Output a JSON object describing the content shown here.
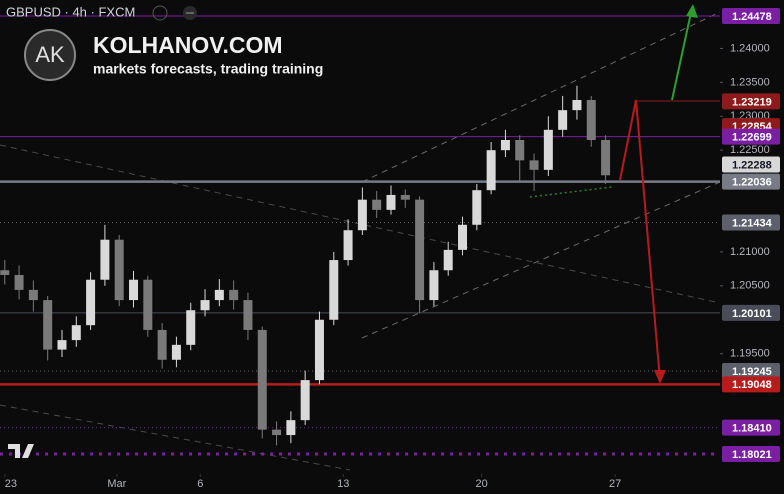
{
  "chart_data": {
    "type": "candlestick",
    "title": "GBPUSD · 4h · FXCM",
    "watermark": {
      "logo": "AK",
      "name": "KOLHANOV.COM",
      "tagline": "markets forecasts, trading training"
    },
    "up_color": "#d9d9d9",
    "down_color": "#7a7a7a",
    "xlim": [
      0,
      151
    ],
    "xticks": [
      {
        "value": 1,
        "label": "23"
      },
      {
        "value": 24.5,
        "label": "Mar"
      },
      {
        "value": 42,
        "label": "6"
      },
      {
        "value": 72,
        "label": "13"
      },
      {
        "value": 101,
        "label": "20"
      },
      {
        "value": 129,
        "label": "27"
      }
    ],
    "ylim": [
      1.17431,
      1.24714
    ],
    "yticks": [
      {
        "value": 1.24,
        "label": "1.24000"
      },
      {
        "value": 1.235,
        "label": "1.23500"
      },
      {
        "value": 1.23,
        "label": "1.23000"
      },
      {
        "value": 1.225,
        "label": "1.22500"
      },
      {
        "value": 1.21,
        "label": "1.21000"
      },
      {
        "value": 1.205,
        "label": "1.20500"
      },
      {
        "value": 1.195,
        "label": "1.19500"
      }
    ],
    "x": [
      1,
      4,
      7,
      10,
      13,
      16,
      19,
      22,
      25,
      28,
      31,
      34,
      37,
      40,
      43,
      46,
      49,
      52,
      55,
      58,
      61,
      64,
      67,
      70,
      73,
      76,
      79,
      82,
      85,
      88,
      91,
      94,
      97,
      100,
      103,
      106,
      109,
      112,
      115,
      118,
      121,
      124,
      127
    ],
    "open": [
      1.2073,
      1.2066,
      1.2044,
      1.2029,
      1.1956,
      1.197,
      1.1992,
      1.2059,
      1.2118,
      1.2029,
      1.2059,
      1.1985,
      1.1941,
      1.1963,
      1.2014,
      1.2029,
      1.2044,
      1.2029,
      1.1985,
      1.1838,
      1.183,
      1.1852,
      1.1911,
      1.2,
      1.2088,
      1.2132,
      1.2177,
      1.2162,
      1.2184,
      1.2177,
      1.2029,
      1.2073,
      1.2103,
      1.214,
      1.2191,
      1.225,
      1.2265,
      1.2235,
      1.2221,
      1.228,
      1.2309,
      1.2324,
      1.2265
    ],
    "high": [
      1.2088,
      1.208,
      1.2058,
      1.2035,
      1.1985,
      1.2005,
      1.207,
      1.214,
      1.2125,
      1.2072,
      1.2065,
      1.1995,
      1.1975,
      1.2025,
      1.2045,
      1.206,
      1.2058,
      1.204,
      1.199,
      1.185,
      1.1865,
      1.1925,
      1.2012,
      1.21,
      1.2148,
      1.2195,
      1.219,
      1.2198,
      1.2192,
      1.2182,
      1.2085,
      1.2115,
      1.2152,
      1.22,
      1.2262,
      1.228,
      1.2272,
      1.2245,
      1.23,
      1.233,
      1.2345,
      1.233,
      1.2272
    ],
    "low": [
      1.2052,
      1.203,
      1.2012,
      1.194,
      1.1945,
      1.196,
      1.1985,
      1.205,
      1.202,
      1.2018,
      1.1975,
      1.1928,
      1.193,
      1.1955,
      1.2005,
      1.202,
      1.2015,
      1.197,
      1.1825,
      1.1815,
      1.1818,
      1.1845,
      1.1905,
      1.1992,
      1.208,
      1.2125,
      1.215,
      1.2155,
      1.2165,
      1.201,
      1.202,
      1.2065,
      1.2095,
      1.2132,
      1.2185,
      1.224,
      1.2205,
      1.219,
      1.2212,
      1.227,
      1.2295,
      1.2255,
      1.22
    ],
    "close": [
      1.2066,
      1.2044,
      1.2029,
      1.1956,
      1.197,
      1.1992,
      1.2059,
      1.2118,
      1.2029,
      1.2059,
      1.1985,
      1.1941,
      1.1963,
      1.2014,
      1.2029,
      1.2044,
      1.2029,
      1.1985,
      1.1838,
      1.183,
      1.1852,
      1.1911,
      1.2,
      1.2088,
      1.2132,
      1.2177,
      1.2162,
      1.2184,
      1.2177,
      1.2029,
      1.2073,
      1.2103,
      1.214,
      1.2191,
      1.225,
      1.2265,
      1.2235,
      1.2221,
      1.228,
      1.2309,
      1.2324,
      1.2265,
      1.2213
    ],
    "levels": [
      {
        "value": 1.24478,
        "color": "#7b1fa2",
        "style": "solid"
      },
      {
        "value": 1.23219,
        "color": "#8e1b1b",
        "style": "none"
      },
      {
        "value": 1.22854,
        "color": "#8e1b1b",
        "style": "none"
      },
      {
        "value": 1.22699,
        "color": "#7b1fa2",
        "style": "solid"
      },
      {
        "value": 1.22288,
        "color": "#d8d8d8",
        "style": "none"
      },
      {
        "value": 1.22036,
        "color": "#787b86",
        "style": "thick"
      },
      {
        "value": 1.21434,
        "color": "#5d606b",
        "style": "dotted"
      },
      {
        "value": 1.20101,
        "color": "#4a4d57",
        "style": "solid"
      },
      {
        "value": 1.19245,
        "color": "#5d606b",
        "style": "dotted"
      },
      {
        "value": 1.19048,
        "color": "#b71c1c",
        "style": "thick"
      },
      {
        "value": 1.1841,
        "label": "1.18410",
        "color": "#7b1fa2",
        "style": "dotted"
      },
      {
        "value": 1.18021,
        "color": "#7b1fa2",
        "style": "dots"
      }
    ]
  }
}
